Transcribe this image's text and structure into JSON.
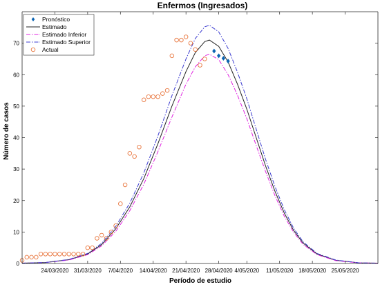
{
  "chart_data": {
    "type": "line",
    "title": "Enfermos (Ingresados)",
    "xlabel": "Período de estudio",
    "ylabel": "Número de casos",
    "ylim": [
      0,
      80
    ],
    "yticks": [
      0,
      10,
      20,
      30,
      40,
      50,
      60,
      70
    ],
    "xlim": [
      "2020-03-17",
      "2020-06-01"
    ],
    "xticks": [
      "24/03/2020",
      "31/03/2020",
      "7/04/2020",
      "14/04/2020",
      "21/04/2020",
      "28/04/2020",
      "4/05/2020",
      "11/05/2020",
      "18/05/2020",
      "25/05/2020"
    ],
    "xtick_dates": [
      "2020-03-24",
      "2020-03-31",
      "2020-04-07",
      "2020-04-14",
      "2020-04-21",
      "2020-04-28",
      "2020-05-04",
      "2020-05-11",
      "2020-05-18",
      "2020-05-25"
    ],
    "grid": false,
    "legend_position": "top-left",
    "legend": [
      "Pronóstico",
      "Estimado",
      "Estimado Inferior",
      "Estimado Superior",
      "Actual"
    ],
    "series": [
      {
        "name": "Pronóstico",
        "style": "diamond-markers",
        "color": "#0a63b3",
        "points": [
          [
            "2020-04-27",
            67.5
          ],
          [
            "2020-04-28",
            66.0
          ],
          [
            "2020-04-29",
            65.2
          ],
          [
            "2020-04-30",
            64.3
          ]
        ]
      },
      {
        "name": "Estimado",
        "style": "solid-line",
        "color": "#222222",
        "points": [
          [
            "2020-03-17",
            0.1
          ],
          [
            "2020-03-22",
            0.3
          ],
          [
            "2020-03-27",
            1.2
          ],
          [
            "2020-03-31",
            3.0
          ],
          [
            "2020-04-03",
            6.0
          ],
          [
            "2020-04-06",
            11.0
          ],
          [
            "2020-04-09",
            18.0
          ],
          [
            "2020-04-12",
            27.0
          ],
          [
            "2020-04-15",
            38.0
          ],
          [
            "2020-04-18",
            50.0
          ],
          [
            "2020-04-21",
            61.0
          ],
          [
            "2020-04-23",
            67.0
          ],
          [
            "2020-04-25",
            70.5
          ],
          [
            "2020-04-26",
            71.0
          ],
          [
            "2020-04-28",
            69.0
          ],
          [
            "2020-04-30",
            64.0
          ],
          [
            "2020-05-02",
            57.0
          ],
          [
            "2020-05-04",
            49.0
          ],
          [
            "2020-05-06",
            40.0
          ],
          [
            "2020-05-08",
            31.0
          ],
          [
            "2020-05-10",
            23.0
          ],
          [
            "2020-05-12",
            16.0
          ],
          [
            "2020-05-14",
            10.5
          ],
          [
            "2020-05-16",
            6.5
          ],
          [
            "2020-05-19",
            3.0
          ],
          [
            "2020-05-23",
            1.0
          ],
          [
            "2020-05-28",
            0.2
          ],
          [
            "2020-06-01",
            0.1
          ]
        ]
      },
      {
        "name": "Estimado Inferior",
        "style": "dash-dot-line",
        "color": "#e020e0",
        "points": [
          [
            "2020-03-17",
            0.1
          ],
          [
            "2020-03-22",
            0.3
          ],
          [
            "2020-03-27",
            1.1
          ],
          [
            "2020-03-31",
            2.8
          ],
          [
            "2020-04-03",
            5.6
          ],
          [
            "2020-04-06",
            10.2
          ],
          [
            "2020-04-09",
            16.8
          ],
          [
            "2020-04-12",
            25.2
          ],
          [
            "2020-04-15",
            35.5
          ],
          [
            "2020-04-18",
            46.5
          ],
          [
            "2020-04-21",
            57.0
          ],
          [
            "2020-04-23",
            62.5
          ],
          [
            "2020-04-25",
            66.0
          ],
          [
            "2020-04-26",
            66.5
          ],
          [
            "2020-04-28",
            64.8
          ],
          [
            "2020-04-30",
            60.0
          ],
          [
            "2020-05-02",
            53.5
          ],
          [
            "2020-05-04",
            46.0
          ],
          [
            "2020-05-06",
            37.5
          ],
          [
            "2020-05-08",
            29.2
          ],
          [
            "2020-05-10",
            21.6
          ],
          [
            "2020-05-12",
            15.0
          ],
          [
            "2020-05-14",
            9.9
          ],
          [
            "2020-05-16",
            6.1
          ],
          [
            "2020-05-19",
            2.8
          ],
          [
            "2020-05-23",
            0.9
          ],
          [
            "2020-05-28",
            0.2
          ],
          [
            "2020-06-01",
            0.1
          ]
        ]
      },
      {
        "name": "Estimado Superior",
        "style": "dash-dot-line",
        "color": "#3b3bd0",
        "points": [
          [
            "2020-03-17",
            0.1
          ],
          [
            "2020-03-22",
            0.3
          ],
          [
            "2020-03-27",
            1.3
          ],
          [
            "2020-03-31",
            3.2
          ],
          [
            "2020-04-03",
            6.4
          ],
          [
            "2020-04-06",
            11.8
          ],
          [
            "2020-04-09",
            19.2
          ],
          [
            "2020-04-12",
            28.8
          ],
          [
            "2020-04-15",
            40.5
          ],
          [
            "2020-04-18",
            53.3
          ],
          [
            "2020-04-21",
            65.0
          ],
          [
            "2020-04-23",
            71.5
          ],
          [
            "2020-04-25",
            75.2
          ],
          [
            "2020-04-26",
            75.7
          ],
          [
            "2020-04-28",
            73.6
          ],
          [
            "2020-04-30",
            68.3
          ],
          [
            "2020-05-02",
            60.8
          ],
          [
            "2020-05-04",
            52.3
          ],
          [
            "2020-05-06",
            42.7
          ],
          [
            "2020-05-08",
            33.1
          ],
          [
            "2020-05-10",
            24.5
          ],
          [
            "2020-05-12",
            17.1
          ],
          [
            "2020-05-14",
            11.2
          ],
          [
            "2020-05-16",
            6.9
          ],
          [
            "2020-05-19",
            3.2
          ],
          [
            "2020-05-23",
            1.1
          ],
          [
            "2020-05-28",
            0.2
          ],
          [
            "2020-06-01",
            0.1
          ]
        ]
      },
      {
        "name": "Actual",
        "style": "circle-markers",
        "color": "#e8743b",
        "points": [
          [
            "2020-03-17",
            1
          ],
          [
            "2020-03-18",
            2
          ],
          [
            "2020-03-19",
            2
          ],
          [
            "2020-03-20",
            2
          ],
          [
            "2020-03-21",
            3
          ],
          [
            "2020-03-22",
            3
          ],
          [
            "2020-03-23",
            3
          ],
          [
            "2020-03-24",
            3
          ],
          [
            "2020-03-25",
            3
          ],
          [
            "2020-03-26",
            3
          ],
          [
            "2020-03-27",
            3
          ],
          [
            "2020-03-28",
            3
          ],
          [
            "2020-03-29",
            3
          ],
          [
            "2020-03-30",
            3
          ],
          [
            "2020-03-31",
            5
          ],
          [
            "2020-04-01",
            5
          ],
          [
            "2020-04-02",
            8
          ],
          [
            "2020-04-03",
            9
          ],
          [
            "2020-04-04",
            8
          ],
          [
            "2020-04-05",
            10
          ],
          [
            "2020-04-06",
            12
          ],
          [
            "2020-04-07",
            19
          ],
          [
            "2020-04-08",
            25
          ],
          [
            "2020-04-09",
            35
          ],
          [
            "2020-04-10",
            34
          ],
          [
            "2020-04-11",
            37
          ],
          [
            "2020-04-12",
            52
          ],
          [
            "2020-04-13",
            53
          ],
          [
            "2020-04-14",
            53
          ],
          [
            "2020-04-15",
            53
          ],
          [
            "2020-04-16",
            54
          ],
          [
            "2020-04-17",
            55
          ],
          [
            "2020-04-18",
            66
          ],
          [
            "2020-04-19",
            71
          ],
          [
            "2020-04-20",
            71
          ],
          [
            "2020-04-21",
            72
          ],
          [
            "2020-04-22",
            70
          ],
          [
            "2020-04-23",
            68
          ],
          [
            "2020-04-24",
            63
          ],
          [
            "2020-04-25",
            65
          ]
        ]
      }
    ]
  }
}
